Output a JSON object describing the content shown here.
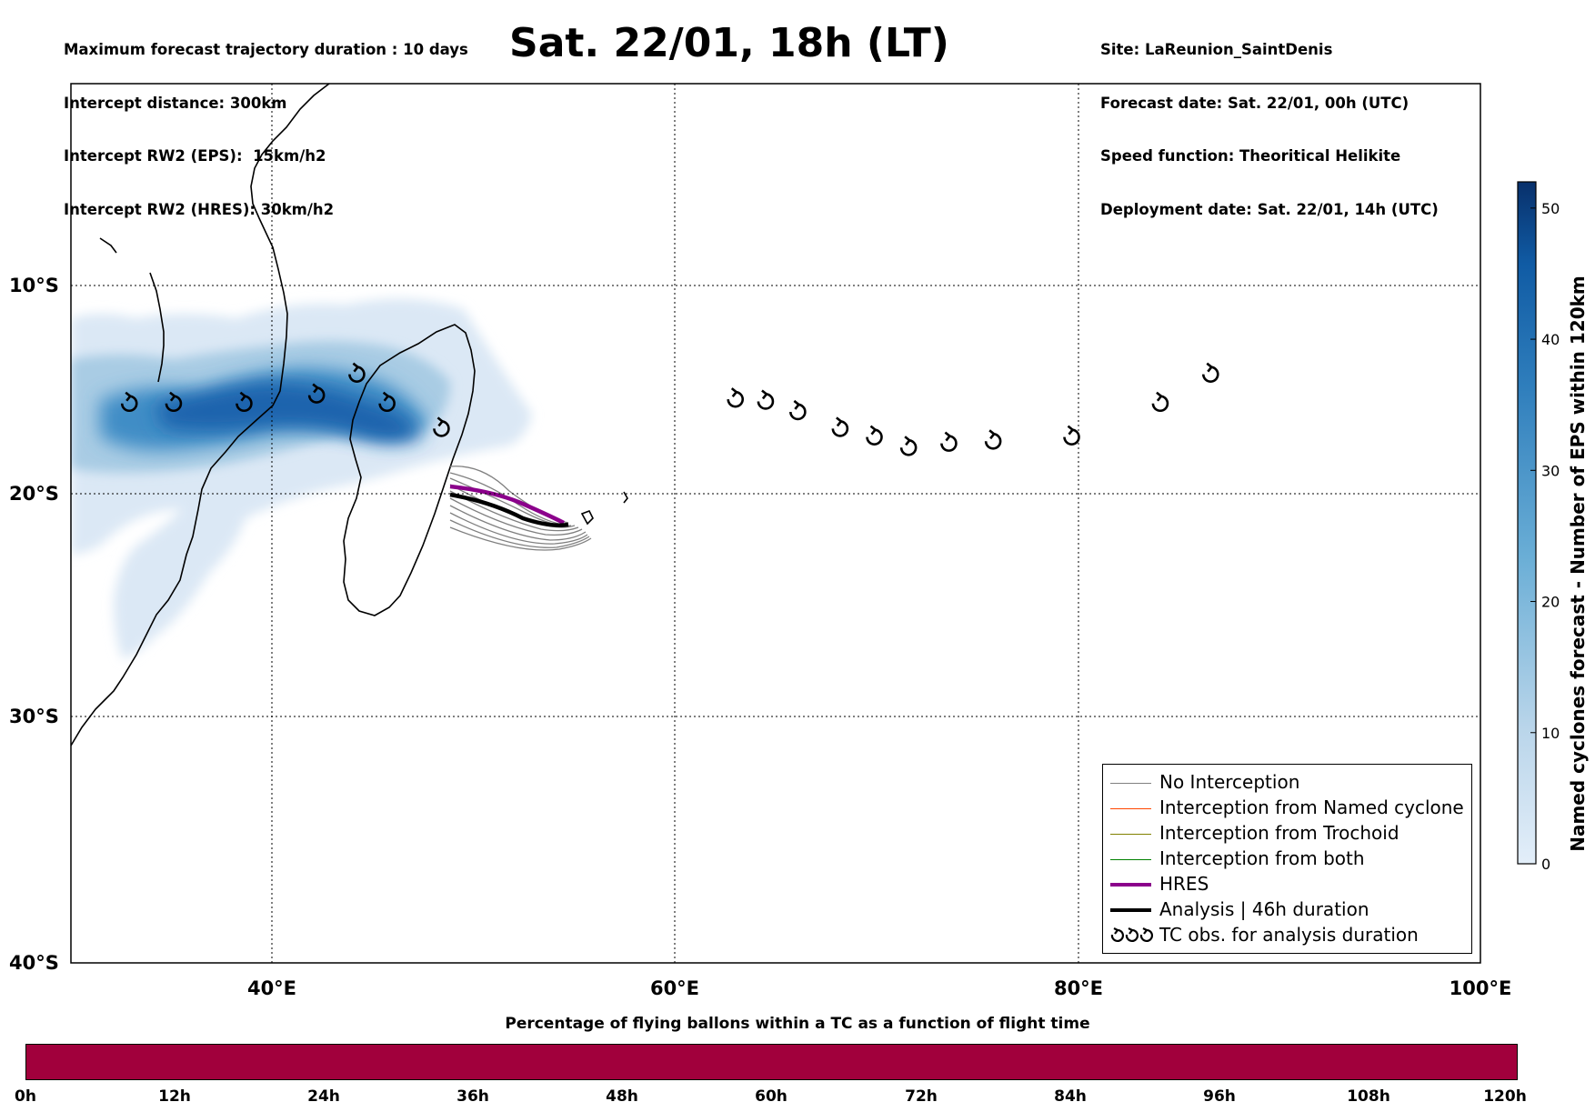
{
  "header_left": [
    "Maximum forecast trajectory duration : 10 days",
    "Intercept distance: 300km",
    "Intercept RW2 (EPS):  15km/h2",
    "Intercept RW2 (HRES): 30km/h2"
  ],
  "title": "Sat. 22/01, 18h (LT)",
  "header_right": [
    "Site: LaReunion_SaintDenis",
    "Forecast date: Sat. 22/01, 00h (UTC)",
    "Speed function: Theoritical Helikite",
    "Deployment date: Sat. 22/01, 14h (UTC)"
  ],
  "map": {
    "lon_range": [
      30,
      100
    ],
    "lat_range": [
      -40,
      0
    ],
    "lon_ticks": [
      "40°E",
      "60°E",
      "80°E",
      "100°E"
    ],
    "lat_ticks": [
      "10°S",
      "20°S",
      "30°S",
      "40°S"
    ],
    "grid": "dotted"
  },
  "legend": {
    "items": [
      {
        "label": "No Interception",
        "color": "#808080"
      },
      {
        "label": "Interception from Named cyclone",
        "color": "#ff4500"
      },
      {
        "label": "Interception from Trochoid",
        "color": "#808000"
      },
      {
        "label": "Interception from both",
        "color": "#008000"
      },
      {
        "label": "HRES",
        "color": "#8b008b"
      },
      {
        "label": "Analysis | 46h duration",
        "color": "#000000"
      },
      {
        "label": "TC obs. for analysis duration",
        "color": "#000000"
      }
    ]
  },
  "colorbar": {
    "label": "Named cyclones forecast - Number of EPS within 120km",
    "ticks": [
      "0",
      "10",
      "20",
      "30",
      "40",
      "50"
    ],
    "range": [
      0,
      52
    ]
  },
  "tc_obs": [
    {
      "lon": 32.9,
      "lat": -15.7
    },
    {
      "lon": 35.1,
      "lat": -15.7
    },
    {
      "lon": 38.6,
      "lat": -15.7
    },
    {
      "lon": 42.2,
      "lat": -15.3
    },
    {
      "lon": 44.2,
      "lat": -14.3
    },
    {
      "lon": 45.7,
      "lat": -15.7
    },
    {
      "lon": 48.4,
      "lat": -16.9
    },
    {
      "lon": 63.0,
      "lat": -15.5
    },
    {
      "lon": 64.5,
      "lat": -15.6
    },
    {
      "lon": 66.1,
      "lat": -16.1
    },
    {
      "lon": 68.2,
      "lat": -16.9
    },
    {
      "lon": 69.9,
      "lat": -17.3
    },
    {
      "lon": 71.6,
      "lat": -17.8
    },
    {
      "lon": 73.6,
      "lat": -17.6
    },
    {
      "lon": 75.8,
      "lat": -17.5
    },
    {
      "lon": 79.7,
      "lat": -17.3
    },
    {
      "lon": 84.1,
      "lat": -15.7
    },
    {
      "lon": 86.6,
      "lat": -14.3
    }
  ],
  "tracks": {
    "hres": [
      [
        48.7,
        -19.5
      ],
      [
        50.4,
        -19.8
      ],
      [
        52.3,
        -20.5
      ],
      [
        54.0,
        -21.2
      ]
    ],
    "analysis": [
      [
        48.7,
        -19.9
      ],
      [
        50.5,
        -20.3
      ],
      [
        52.3,
        -21.0
      ],
      [
        54.5,
        -21.2
      ]
    ]
  },
  "bottom": {
    "title": "Percentage of flying ballons within a TC as a function of flight time",
    "bar_color": "#a1003c",
    "ticks": [
      "0h",
      "12h",
      "24h",
      "36h",
      "48h",
      "60h",
      "72h",
      "84h",
      "96h",
      "108h",
      "120h"
    ]
  }
}
